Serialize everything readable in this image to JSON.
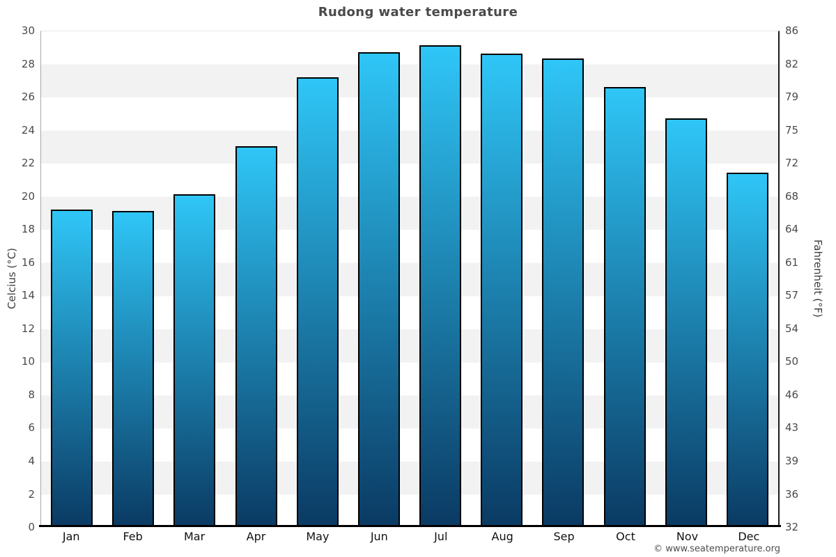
{
  "title": "Rudong water temperature",
  "axes": {
    "left_label": "Celcius (°C)",
    "right_label": "Fahrenheit (°F)"
  },
  "footer": {
    "credit": "© www.seatemperature.org"
  },
  "colors": {
    "bar_gradient_top": "#2fc6f7",
    "bar_gradient_bottom": "#0a3a63",
    "bar_border": "#000000",
    "band_gray": "#f2f2f2",
    "band_white": "#ffffff",
    "title_text": "#4a4a4a",
    "tick_text": "#4a4a4a",
    "month_text": "#111111",
    "baseline": "#000000",
    "left_axis_line": "#a8a8a8",
    "right_axis_line": "#1a1a1a"
  },
  "chart_data": {
    "type": "bar",
    "title": "Rudong water temperature",
    "categories": [
      "Jan",
      "Feb",
      "Mar",
      "Apr",
      "May",
      "Jun",
      "Jul",
      "Aug",
      "Sep",
      "Oct",
      "Nov",
      "Dec"
    ],
    "values": [
      19.2,
      19.1,
      20.1,
      23.0,
      27.2,
      28.7,
      29.1,
      28.6,
      28.3,
      26.6,
      24.7,
      21.4
    ],
    "series_name": "Water temperature (°C)",
    "xlabel": "",
    "ylabel_left": "Celcius (°C)",
    "ylabel_right": "Fahrenheit (°F)",
    "ylim": [
      0,
      30
    ],
    "celsius_ticks": [
      0,
      2,
      4,
      6,
      8,
      10,
      12,
      14,
      16,
      18,
      20,
      22,
      24,
      26,
      28,
      30
    ],
    "fahrenheit_ticks": [
      32,
      36,
      39,
      43,
      46,
      50,
      54,
      57,
      61,
      64,
      68,
      72,
      75,
      79,
      82,
      86
    ],
    "grid": "alternating horizontal bands every 2°C, white and light gray",
    "legend": "none"
  }
}
